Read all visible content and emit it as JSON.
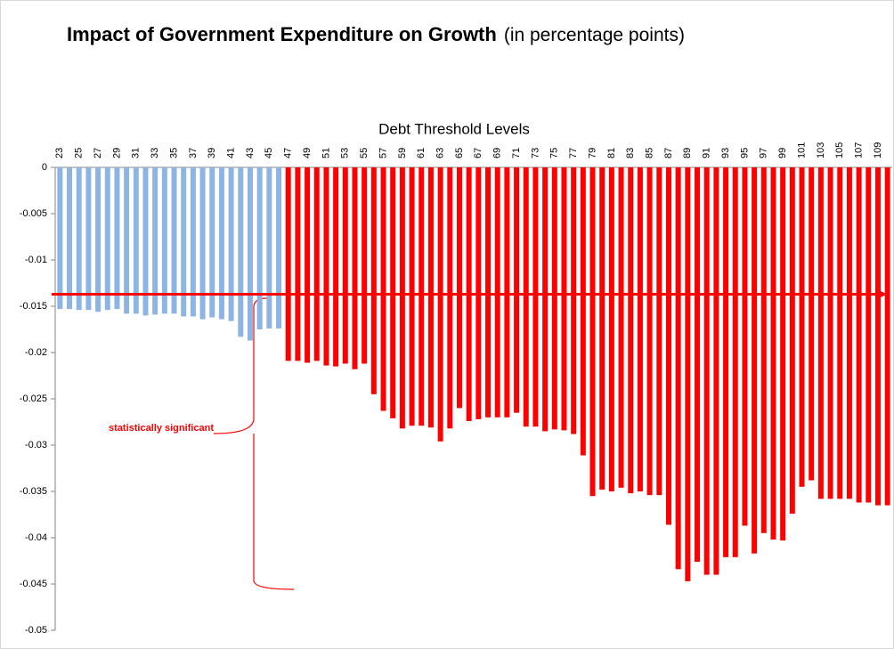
{
  "chart_data": {
    "type": "bar",
    "title": "Impact of Government Expenditure on Growth",
    "subtitle": "(in percentage points)",
    "x_label": "Debt Threshold Levels",
    "annotation": "statistically significant",
    "categories": [
      23,
      null,
      25,
      null,
      27,
      null,
      29,
      null,
      31,
      null,
      33,
      null,
      35,
      null,
      37,
      null,
      39,
      null,
      41,
      null,
      43,
      null,
      45,
      null,
      47,
      null,
      49,
      null,
      51,
      null,
      53,
      null,
      55,
      null,
      57,
      null,
      59,
      null,
      61,
      null,
      63,
      null,
      65,
      null,
      67,
      null,
      69,
      null,
      71,
      null,
      73,
      null,
      75,
      null,
      77,
      null,
      79,
      null,
      81,
      null,
      83,
      null,
      85,
      null,
      87,
      null,
      89,
      null,
      91,
      null,
      93,
      null,
      95,
      null,
      97,
      null,
      99,
      null,
      101,
      null,
      103,
      null,
      105,
      null,
      107,
      null,
      109,
      null
    ],
    "values": [
      -0.0153,
      -0.0153,
      -0.0154,
      -0.0154,
      -0.0156,
      -0.0154,
      -0.0153,
      -0.0158,
      -0.0158,
      -0.016,
      -0.0159,
      -0.0158,
      -0.0158,
      -0.0161,
      -0.0161,
      -0.0164,
      -0.0162,
      -0.0164,
      -0.0166,
      -0.0183,
      -0.0187,
      -0.0175,
      -0.0174,
      -0.0174,
      -0.0209,
      -0.0209,
      -0.0211,
      -0.0209,
      -0.0214,
      -0.0215,
      -0.0212,
      -0.0218,
      -0.0212,
      -0.0245,
      -0.0263,
      -0.0271,
      -0.0282,
      -0.0279,
      -0.0279,
      -0.0281,
      -0.0296,
      -0.0282,
      -0.026,
      -0.0274,
      -0.0272,
      -0.027,
      -0.027,
      -0.027,
      -0.0265,
      -0.028,
      -0.028,
      -0.0285,
      -0.0283,
      -0.0284,
      -0.0288,
      -0.0311,
      -0.0355,
      -0.0348,
      -0.035,
      -0.0346,
      -0.0352,
      -0.035,
      -0.0354,
      -0.0354,
      -0.0386,
      -0.0434,
      -0.0447,
      -0.0426,
      -0.044,
      -0.044,
      -0.0421,
      -0.0421,
      -0.0387,
      -0.0417,
      -0.0395,
      -0.0402,
      -0.0403,
      -0.0374,
      -0.0345,
      -0.0338,
      -0.0358,
      -0.0358,
      -0.0358,
      -0.0358,
      -0.0362,
      -0.0362,
      -0.0365,
      -0.0365
    ],
    "colors": [
      "#8db4e2",
      "#8db4e2",
      "#8db4e2",
      "#8db4e2",
      "#8db4e2",
      "#8db4e2",
      "#8db4e2",
      "#8db4e2",
      "#8db4e2",
      "#8db4e2",
      "#8db4e2",
      "#8db4e2",
      "#8db4e2",
      "#8db4e2",
      "#8db4e2",
      "#8db4e2",
      "#8db4e2",
      "#8db4e2",
      "#8db4e2",
      "#8db4e2",
      "#8db4e2",
      "#8db4e2",
      "#8db4e2",
      "#8db4e2",
      "#ff0000",
      "#ff0000",
      "#ff0000",
      "#ff0000",
      "#ff0000",
      "#ff0000",
      "#ff0000",
      "#ff0000",
      "#ff0000",
      "#ff0000",
      "#ff0000",
      "#ff0000",
      "#ff0000",
      "#ff0000",
      "#ff0000",
      "#ff0000",
      "#ff0000",
      "#ff0000",
      "#ff0000",
      "#ff0000",
      "#ff0000",
      "#ff0000",
      "#ff0000",
      "#ff0000",
      "#ff0000",
      "#ff0000",
      "#ff0000",
      "#ff0000",
      "#ff0000",
      "#ff0000",
      "#ff0000",
      "#ff0000",
      "#ff0000",
      "#ff0000",
      "#ff0000",
      "#ff0000",
      "#ff0000",
      "#ff0000",
      "#ff0000",
      "#ff0000",
      "#ff0000",
      "#ff0000",
      "#ff0000",
      "#ff0000",
      "#ff0000",
      "#ff0000",
      "#ff0000",
      "#ff0000",
      "#ff0000",
      "#ff0000",
      "#ff0000",
      "#ff0000",
      "#ff0000",
      "#ff0000",
      "#ff0000",
      "#ff0000",
      "#ff0000",
      "#ff0000",
      "#ff0000",
      "#ff0000",
      "#ff0000",
      "#ff0000",
      "#ff0000",
      "#ff0000"
    ],
    "reference_line": -0.0137,
    "reference_color": "#ff0000",
    "ylim": [
      -0.05,
      0
    ],
    "yticks": [
      0,
      -0.005,
      -0.01,
      -0.015,
      -0.02,
      -0.025,
      -0.03,
      -0.035,
      -0.04,
      -0.045,
      -0.05
    ],
    "grid": false
  }
}
